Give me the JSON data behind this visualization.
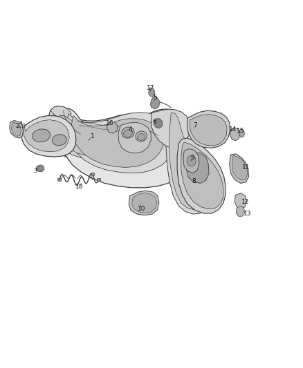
{
  "bg_color": "#ffffff",
  "line_color": "#3a3a3a",
  "fill_light": "#e8e8e8",
  "fill_mid": "#d0d0d0",
  "fill_dark": "#b0b0b0",
  "figsize": [
    4.38,
    5.33
  ],
  "dpi": 100,
  "label_configs": [
    [
      1,
      0.305,
      0.63,
      0.285,
      0.615
    ],
    [
      2,
      0.055,
      0.658,
      0.075,
      0.652
    ],
    [
      3,
      0.115,
      0.535,
      0.12,
      0.545
    ],
    [
      4,
      0.43,
      0.648,
      0.442,
      0.638
    ],
    [
      5,
      0.512,
      0.735,
      0.505,
      0.72
    ],
    [
      6,
      0.51,
      0.67,
      0.515,
      0.66
    ],
    [
      7,
      0.645,
      0.66,
      0.638,
      0.648
    ],
    [
      8,
      0.64,
      0.508,
      0.637,
      0.52
    ],
    [
      9,
      0.635,
      0.572,
      0.628,
      0.558
    ],
    [
      10,
      0.468,
      0.432,
      0.462,
      0.448
    ],
    [
      11,
      0.812,
      0.545,
      0.8,
      0.552
    ],
    [
      12,
      0.81,
      0.452,
      0.8,
      0.462
    ],
    [
      13,
      0.818,
      0.42,
      0.805,
      0.432
    ],
    [
      14,
      0.77,
      0.648,
      0.76,
      0.64
    ],
    [
      15,
      0.795,
      0.645,
      0.785,
      0.638
    ],
    [
      16,
      0.362,
      0.666,
      0.358,
      0.655
    ],
    [
      17,
      0.498,
      0.762,
      0.495,
      0.748
    ],
    [
      18,
      0.262,
      0.492,
      0.268,
      0.504
    ]
  ]
}
